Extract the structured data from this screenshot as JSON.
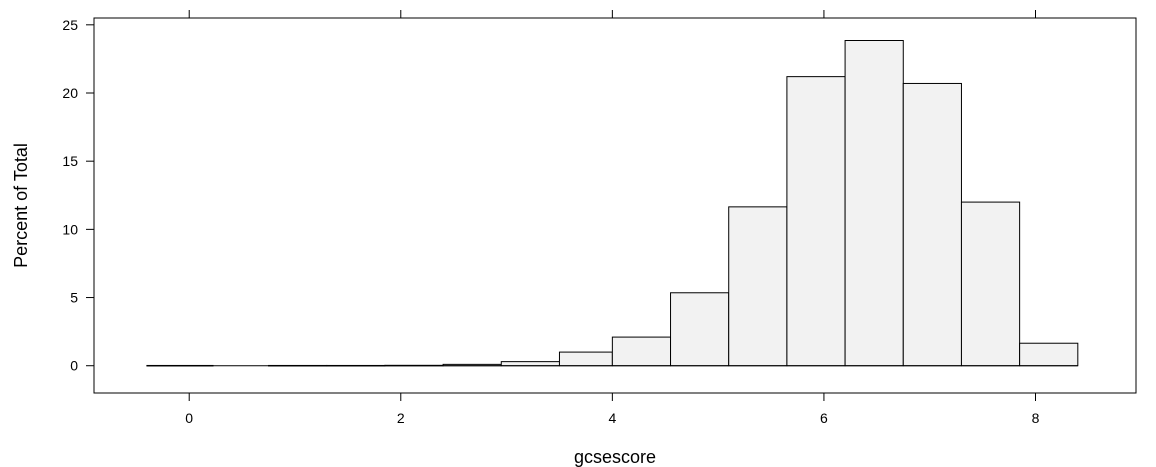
{
  "chart_data": {
    "type": "bar",
    "title": "",
    "xlabel": "gcsescore",
    "ylabel": "Percent of Total",
    "xlim": [
      -0.9,
      8.95
    ],
    "ylim": [
      -2,
      25.5
    ],
    "xticks": [
      0,
      2,
      4,
      6,
      8
    ],
    "yticks": [
      0,
      5,
      10,
      15,
      20,
      25
    ],
    "xtick_labels": [
      "0",
      "2",
      "4",
      "6",
      "8"
    ],
    "ytick_labels": [
      "0",
      "5",
      "10",
      "15",
      "20",
      "25"
    ],
    "grid": false,
    "bin_range": [
      -0.4,
      8.4
    ],
    "bins": [
      {
        "x0": -0.4,
        "x1": 0.225,
        "value": 0.02
      },
      {
        "x0": 0.225,
        "x1": 0.75,
        "value": 0.0
      },
      {
        "x0": 0.75,
        "x1": 1.3,
        "value": 0.02
      },
      {
        "x0": 1.3,
        "x1": 1.85,
        "value": 0.02
      },
      {
        "x0": 1.85,
        "x1": 2.4,
        "value": 0.03
      },
      {
        "x0": 2.4,
        "x1": 2.95,
        "value": 0.1
      },
      {
        "x0": 2.95,
        "x1": 3.5,
        "value": 0.3
      },
      {
        "x0": 3.5,
        "x1": 4.0,
        "value": 1.0
      },
      {
        "x0": 4.0,
        "x1": 4.55,
        "value": 2.1
      },
      {
        "x0": 4.55,
        "x1": 5.1,
        "value": 5.35
      },
      {
        "x0": 5.1,
        "x1": 5.65,
        "value": 11.65
      },
      {
        "x0": 5.65,
        "x1": 6.2,
        "value": 21.2
      },
      {
        "x0": 6.2,
        "x1": 6.75,
        "value": 23.85
      },
      {
        "x0": 6.75,
        "x1": 7.3,
        "value": 20.7
      },
      {
        "x0": 7.3,
        "x1": 7.85,
        "value": 12.0
      },
      {
        "x0": 7.85,
        "x1": 8.4,
        "value": 1.65
      }
    ]
  }
}
